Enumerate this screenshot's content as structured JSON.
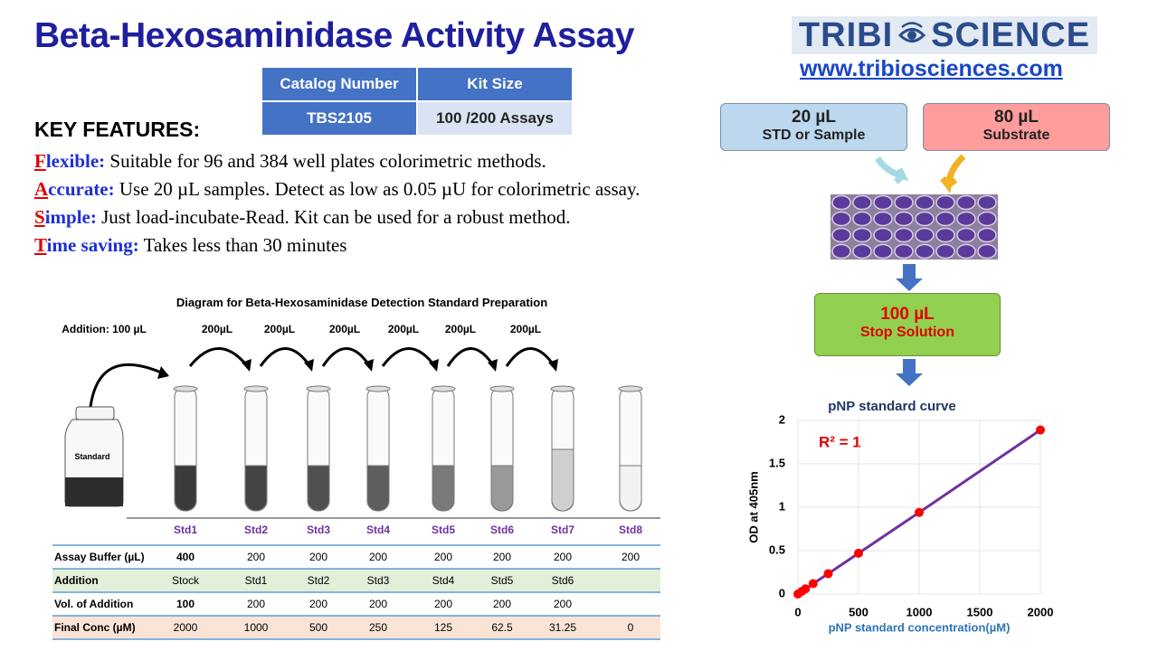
{
  "header": {
    "title": "Beta-Hexosaminidase Activity Assay",
    "logo_left": "TRIBI",
    "logo_right": "SCIENCE",
    "url": "www.tribiosciences.com"
  },
  "catalog": {
    "columns": [
      "Catalog Number",
      "Kit Size"
    ],
    "row": [
      "TBS2105",
      "100 /200 Assays"
    ]
  },
  "features": {
    "heading": "KEY FEATURES:",
    "items": [
      {
        "initial": "F",
        "label": "lexible:",
        "text": "Suitable for 96 and 384 well plates colorimetric methods."
      },
      {
        "initial": "A",
        "label": "ccurate:",
        "text": "Use 20 µL samples. Detect as low as 0.05 µU for colorimetric assay."
      },
      {
        "initial": "S",
        "label": "imple:",
        "text": "Just load-incubate-Read. Kit can be used for a robust method."
      },
      {
        "initial": "T",
        "label": "ime saving:",
        "text": "Takes less than 30 minutes"
      }
    ]
  },
  "workflow": {
    "steps": [
      {
        "amount": "20 µL",
        "label": "STD or Sample"
      },
      {
        "amount": "80 µL",
        "label": "Substrate"
      },
      {
        "amount": "100 µL",
        "label": "Stop Solution"
      }
    ]
  },
  "diagram": {
    "title": "Diagram for Beta-Hexosaminidase  Detection Standard Preparation",
    "addition": "Addition: 100 µL",
    "transfers": [
      "200µL",
      "200µL",
      "200µL",
      "200µL",
      "200µL",
      "200µL"
    ],
    "bottle": "Standard",
    "table": {
      "columns": [
        "Std1",
        "Std2",
        "Std3",
        "Std4",
        "Std5",
        "Std6",
        "Std7",
        "Std8"
      ],
      "rows": [
        {
          "label": "Assay Buffer (µL)",
          "cells": [
            "400",
            "200",
            "200",
            "200",
            "200",
            "200",
            "200",
            "200"
          ]
        },
        {
          "label": "Addition",
          "cells": [
            "Stock",
            "Std1",
            "Std2",
            "Std3",
            "Std4",
            "Std5",
            "Std6"
          ]
        },
        {
          "label": "Vol. of Addition",
          "cells": [
            "100",
            "200",
            "200",
            "200",
            "200",
            "200",
            "200"
          ]
        },
        {
          "label": "Final Conc (µM)",
          "cells": [
            "2000",
            "1000",
            "500",
            "250",
            "125",
            "62.5",
            "31.25",
            "0"
          ]
        }
      ]
    }
  },
  "chart_data": {
    "type": "line",
    "title": "pNP standard curve",
    "x_label": "pNP standard concentration(µM)",
    "y_label": "OD at 405nm",
    "annotation": "R² = 1",
    "x": [
      0,
      31.25,
      62.5,
      125,
      250,
      500,
      1000,
      2000
    ],
    "series": [
      {
        "name": "pNP standard",
        "color": "#7030a0",
        "marker_color": "#ff0000",
        "values": [
          0,
          0.03,
          0.06,
          0.12,
          0.235,
          0.47,
          0.94,
          1.89
        ]
      }
    ],
    "xlim": [
      0,
      2000
    ],
    "xticks": [
      0,
      500,
      1000,
      1500,
      2000
    ],
    "ylim": [
      0,
      2
    ],
    "yticks": [
      0,
      0.5,
      1,
      1.5,
      2
    ],
    "grid": true
  }
}
